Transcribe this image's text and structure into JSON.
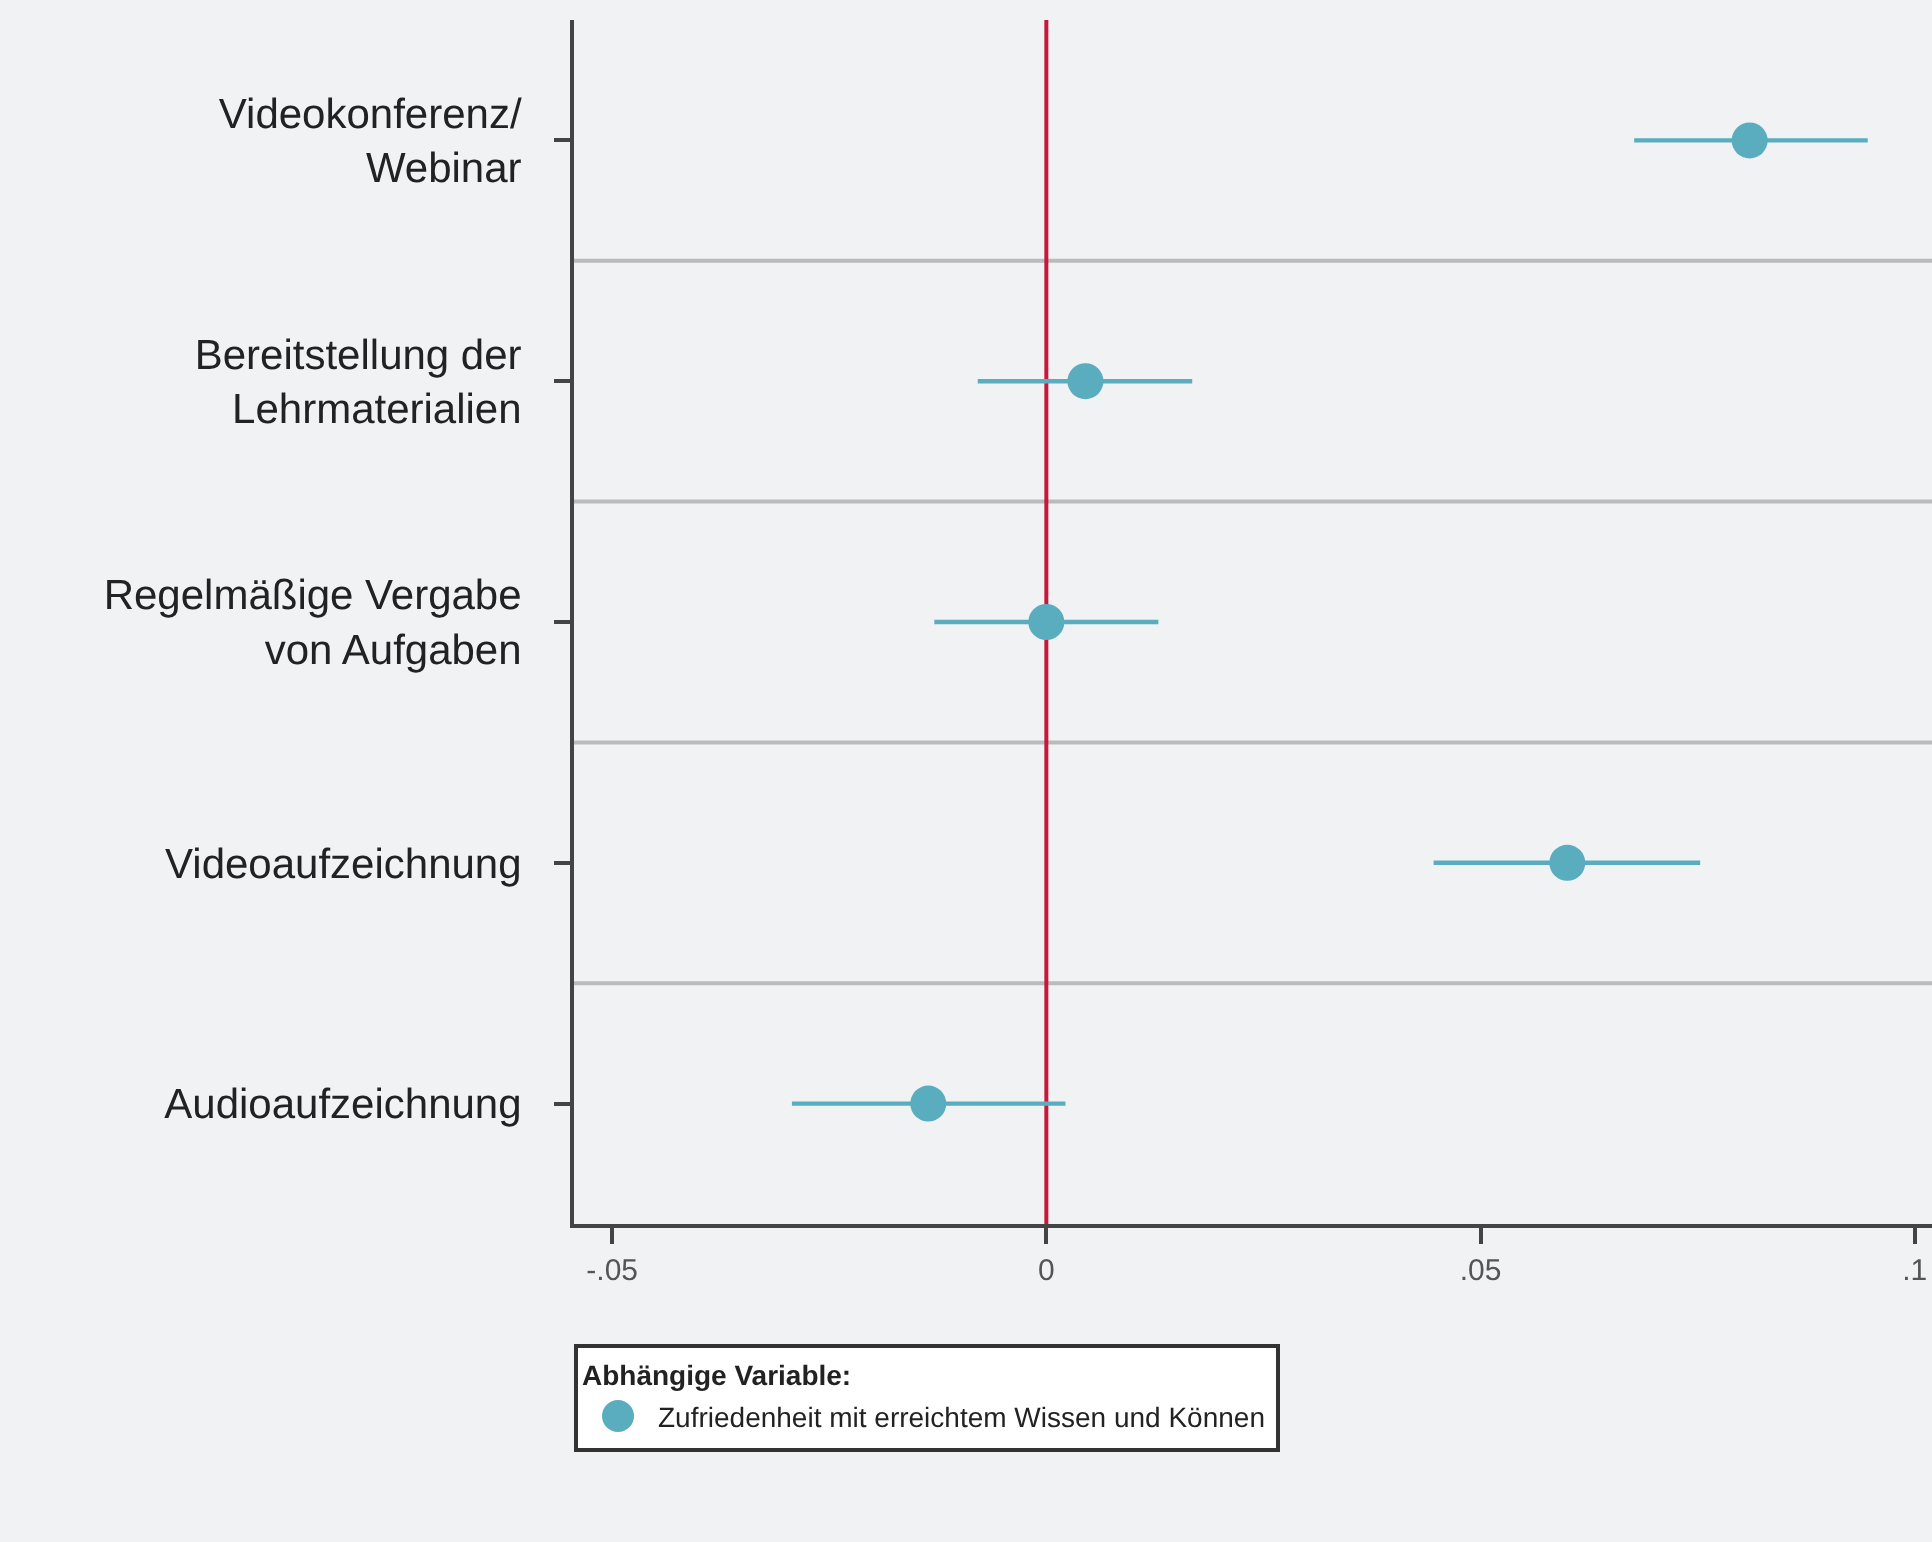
{
  "chart_data": {
    "type": "scatter",
    "orientation": "horizontal",
    "categories": [
      "Videokonferenz/\nWebinar",
      "Bereitstellung der\nLehrmaterialien",
      "Regelmäßige Vergabe\nvon Aufgaben",
      "Videoaufzeichnung",
      "Audioaufzeichnung"
    ],
    "series": [
      {
        "name": "Zufriedenheit mit erreichtem Wissen und Können",
        "color": "#5aacbf",
        "values": [
          0.081,
          0.0045,
          0.0,
          0.06,
          -0.0136
        ],
        "errors": [
          [
            0.0677,
            0.0946
          ],
          [
            -0.0079,
            0.0168
          ],
          [
            -0.0129,
            0.0129
          ],
          [
            0.0446,
            0.0753
          ],
          [
            -0.0293,
            0.0022
          ]
        ]
      }
    ],
    "xlim": [
      -0.0544,
      0.102
    ],
    "xticks": [
      {
        "value": -0.05,
        "label": "-.05"
      },
      0,
      {
        "value": 0.05,
        "label": ".05"
      },
      {
        "value": 0.1,
        "label": ".1"
      }
    ],
    "ref_lines": [
      {
        "axis": "x",
        "value": 0,
        "label": null,
        "color": "#c8173c"
      }
    ],
    "legend_title": "Abhängige Variable:",
    "legend": "bottom",
    "grid": "y",
    "marker": "circle"
  }
}
